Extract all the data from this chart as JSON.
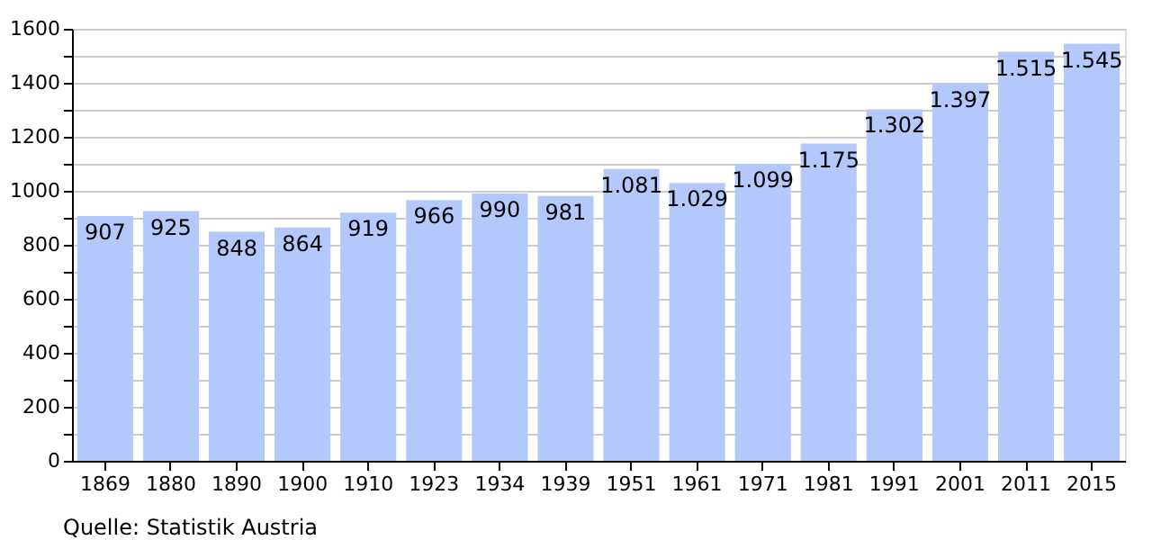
{
  "chart_data": {
    "type": "bar",
    "categories": [
      "1869",
      "1880",
      "1890",
      "1900",
      "1910",
      "1923",
      "1934",
      "1939",
      "1951",
      "1961",
      "1971",
      "1981",
      "1991",
      "2001",
      "2011",
      "2015"
    ],
    "values": [
      907,
      925,
      848,
      864,
      919,
      966,
      990,
      981,
      1081,
      1029,
      1099,
      1175,
      1302,
      1397,
      1515,
      1545
    ],
    "value_labels": [
      "907",
      "925",
      "848",
      "864",
      "919",
      "966",
      "990",
      "981",
      "1.081",
      "1.029",
      "1.099",
      "1.175",
      "1.302",
      "1.397",
      "1.515",
      "1.545"
    ],
    "color": "#b3c8fb",
    "ylim": [
      0,
      1600
    ],
    "yticks": [
      0,
      {
        "value": 100,
        "label": null
      },
      200,
      {
        "value": 300,
        "label": null
      },
      400,
      {
        "value": 500,
        "label": null
      },
      600,
      {
        "value": 700,
        "label": null
      },
      800,
      {
        "value": 900,
        "label": null
      },
      1000,
      {
        "value": 1100,
        "label": null
      },
      1200,
      {
        "value": 1300,
        "label": null
      },
      1400,
      {
        "value": 1500,
        "label": null
      },
      1600
    ],
    "grid": true,
    "annotations": [
      "Quelle: Statistik Austria"
    ]
  }
}
